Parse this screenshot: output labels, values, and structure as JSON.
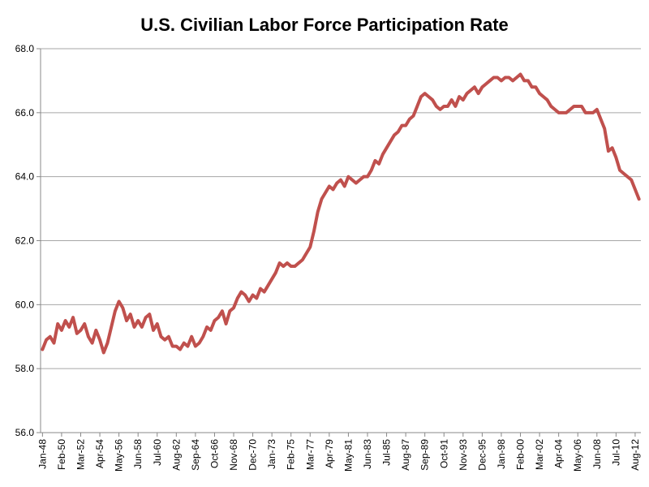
{
  "chart_data": {
    "type": "line",
    "title": "U.S. Civilian Labor Force Participation Rate",
    "categories": [
      "Jan-48",
      null,
      null,
      null,
      null,
      "Feb-50",
      null,
      null,
      null,
      null,
      "Mar-52",
      null,
      null,
      null,
      null,
      "Apr-54",
      null,
      null,
      null,
      null,
      "May-56",
      null,
      null,
      null,
      null,
      "Jun-58",
      null,
      null,
      null,
      null,
      "Jul-60",
      null,
      null,
      null,
      null,
      "Aug-62",
      null,
      null,
      null,
      null,
      "Sep-64",
      null,
      null,
      null,
      null,
      "Oct-66",
      null,
      null,
      null,
      null,
      "Nov-68",
      null,
      null,
      null,
      null,
      "Dec-70",
      null,
      null,
      null,
      null,
      "Jan-73",
      null,
      null,
      null,
      null,
      "Feb-75",
      null,
      null,
      null,
      null,
      "Mar-77",
      null,
      null,
      null,
      null,
      "Apr-79",
      null,
      null,
      null,
      null,
      "May-81",
      null,
      null,
      null,
      null,
      "Jun-83",
      null,
      null,
      null,
      null,
      "Jul-85",
      null,
      null,
      null,
      null,
      "Aug-87",
      null,
      null,
      null,
      null,
      "Sep-89",
      null,
      null,
      null,
      null,
      "Oct-91",
      null,
      null,
      null,
      null,
      "Nov-93",
      null,
      null,
      null,
      null,
      "Dec-95",
      null,
      null,
      null,
      null,
      "Jan-98",
      null,
      null,
      null,
      null,
      "Feb-00",
      null,
      null,
      null,
      null,
      "Mar-02",
      null,
      null,
      null,
      null,
      "Apr-04",
      null,
      null,
      null,
      null,
      "May-06",
      null,
      null,
      null,
      null,
      "Jun-08",
      null,
      null,
      null,
      null,
      "Jul-10",
      null,
      null,
      null,
      null,
      "Aug-12",
      null
    ],
    "series": [
      {
        "color": "#c0504d",
        "values": [
          58.6,
          58.9,
          59.0,
          58.8,
          59.4,
          59.2,
          59.5,
          59.3,
          59.6,
          59.1,
          59.2,
          59.4,
          59.0,
          58.8,
          59.2,
          58.9,
          58.5,
          58.8,
          59.3,
          59.8,
          60.1,
          59.9,
          59.5,
          59.7,
          59.3,
          59.5,
          59.3,
          59.6,
          59.7,
          59.2,
          59.4,
          59.0,
          58.9,
          59.0,
          58.7,
          58.7,
          58.6,
          58.8,
          58.7,
          59.0,
          58.7,
          58.8,
          59.0,
          59.3,
          59.2,
          59.5,
          59.6,
          59.8,
          59.4,
          59.8,
          59.9,
          60.2,
          60.4,
          60.3,
          60.1,
          60.3,
          60.2,
          60.5,
          60.4,
          60.6,
          60.8,
          61.0,
          61.3,
          61.2,
          61.3,
          61.2,
          61.2,
          61.3,
          61.4,
          61.6,
          61.8,
          62.3,
          62.9,
          63.3,
          63.5,
          63.7,
          63.6,
          63.8,
          63.9,
          63.7,
          64.0,
          63.9,
          63.8,
          63.9,
          64.0,
          64.0,
          64.2,
          64.5,
          64.4,
          64.7,
          64.9,
          65.1,
          65.3,
          65.4,
          65.6,
          65.6,
          65.8,
          65.9,
          66.2,
          66.5,
          66.6,
          66.5,
          66.4,
          66.2,
          66.1,
          66.2,
          66.2,
          66.4,
          66.2,
          66.5,
          66.4,
          66.6,
          66.7,
          66.8,
          66.6,
          66.8,
          66.9,
          67.0,
          67.1,
          67.1,
          67.0,
          67.1,
          67.1,
          67.0,
          67.1,
          67.2,
          67.0,
          67.0,
          66.8,
          66.8,
          66.6,
          66.5,
          66.4,
          66.2,
          66.1,
          66.0,
          66.0,
          66.0,
          66.1,
          66.2,
          66.2,
          66.2,
          66.0,
          66.0,
          66.0,
          66.1,
          65.8,
          65.5,
          64.8,
          64.9,
          64.6,
          64.2,
          64.1,
          64.0,
          63.9,
          63.6,
          63.3
        ]
      }
    ],
    "ylim": [
      56,
      68
    ],
    "yticks": [
      {
        "value": 56,
        "label": "56.0"
      },
      {
        "value": 58,
        "label": "58.0"
      },
      {
        "value": 60,
        "label": "60.0"
      },
      {
        "value": 62,
        "label": "62.0"
      },
      {
        "value": 64,
        "label": "64.0"
      },
      {
        "value": 66,
        "label": "66.0"
      },
      {
        "value": 68,
        "label": "68.0"
      }
    ],
    "grid": true
  }
}
